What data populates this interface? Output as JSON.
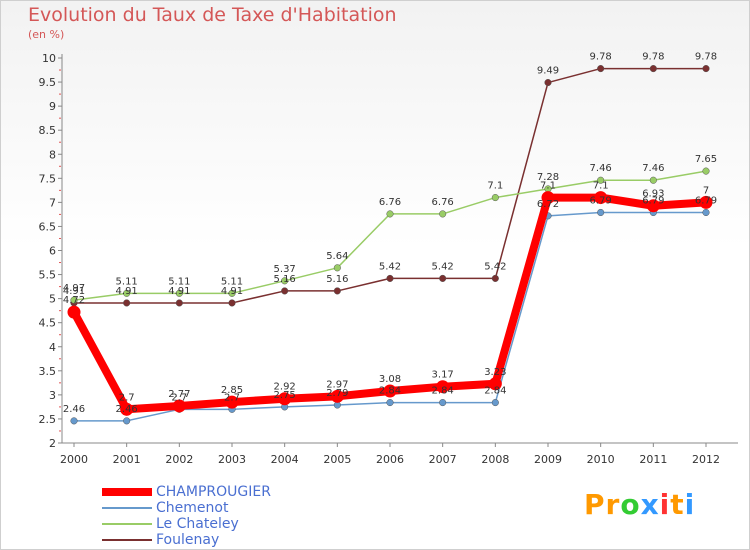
{
  "title": "Evolution du Taux de Taxe d'Habitation",
  "unit": "(en %)",
  "logo": {
    "text": "Proxiti",
    "letters": [
      {
        "ch": "P",
        "color": "#ff9900"
      },
      {
        "ch": "r",
        "color": "#ff9900"
      },
      {
        "ch": "o",
        "color": "#33cc33"
      },
      {
        "ch": "x",
        "color": "#3399ff"
      },
      {
        "ch": "i",
        "color": "#ff3333"
      },
      {
        "ch": "t",
        "color": "#ff9900"
      },
      {
        "ch": "i",
        "color": "#3399ff"
      }
    ]
  },
  "chart_data": {
    "type": "line",
    "title": "Evolution du Taux de Taxe d'Habitation",
    "ylabel": "(en %)",
    "xlabel": "",
    "x": [
      "2000",
      "2001",
      "2002",
      "2003",
      "2004",
      "2005",
      "2006",
      "2007",
      "2008",
      "2009",
      "2010",
      "2011",
      "2012"
    ],
    "ylim": [
      2,
      10
    ],
    "yticks": [
      "2",
      "2.5",
      "3",
      "3.5",
      "4",
      "4.5",
      "5",
      "5.5",
      "6",
      "6.5",
      "7",
      "7.5",
      "8",
      "8.5",
      "9",
      "9.5",
      "10"
    ],
    "grid": false,
    "legend": "bottom-left",
    "series": [
      {
        "name": "CHAMPROUGIER",
        "color": "#ff0000",
        "values": [
          4.72,
          2.7,
          2.77,
          2.85,
          2.92,
          2.97,
          3.08,
          3.17,
          3.23,
          7.1,
          7.1,
          6.93,
          7.0
        ],
        "labels": [
          "4.72",
          "2.7",
          "2.77",
          "2.85",
          "2.92",
          "2.97",
          "3.08",
          "3.17",
          "3.23",
          "7.1",
          "7.1",
          "6.93",
          "7"
        ]
      },
      {
        "name": "Chemenot",
        "color": "#6699cc",
        "values": [
          2.46,
          2.46,
          2.7,
          2.7,
          2.75,
          2.79,
          2.84,
          2.84,
          2.84,
          6.72,
          6.79,
          6.79,
          6.79
        ],
        "labels": [
          "2.46",
          "2.46",
          "2.7",
          "2.7",
          "2.75",
          "2.79",
          "2.84",
          "2.84",
          "2.84",
          "6.72",
          "6.79",
          "6.79",
          "6.79"
        ]
      },
      {
        "name": "Le Chateley",
        "color": "#99cc66",
        "values": [
          4.97,
          5.11,
          5.11,
          5.11,
          5.37,
          5.64,
          6.76,
          6.76,
          7.1,
          7.28,
          7.46,
          7.46,
          7.65
        ],
        "labels": [
          "4.97",
          "5.11",
          "5.11",
          "5.11",
          "5.37",
          "5.64",
          "6.76",
          "6.76",
          "7.1",
          "7.28",
          "7.46",
          "7.46",
          "7.65"
        ]
      },
      {
        "name": "Foulenay",
        "color": "#7a3030",
        "values": [
          4.91,
          4.91,
          4.91,
          4.91,
          5.16,
          5.16,
          5.42,
          5.42,
          5.42,
          9.49,
          9.78,
          9.78,
          9.78
        ],
        "labels": [
          "4.91",
          "4.91",
          "4.91",
          "4.91",
          "5.16",
          "5.16",
          "5.42",
          "5.42",
          "5.42",
          "9.49",
          "9.78",
          "9.78",
          "9.78"
        ]
      }
    ]
  }
}
